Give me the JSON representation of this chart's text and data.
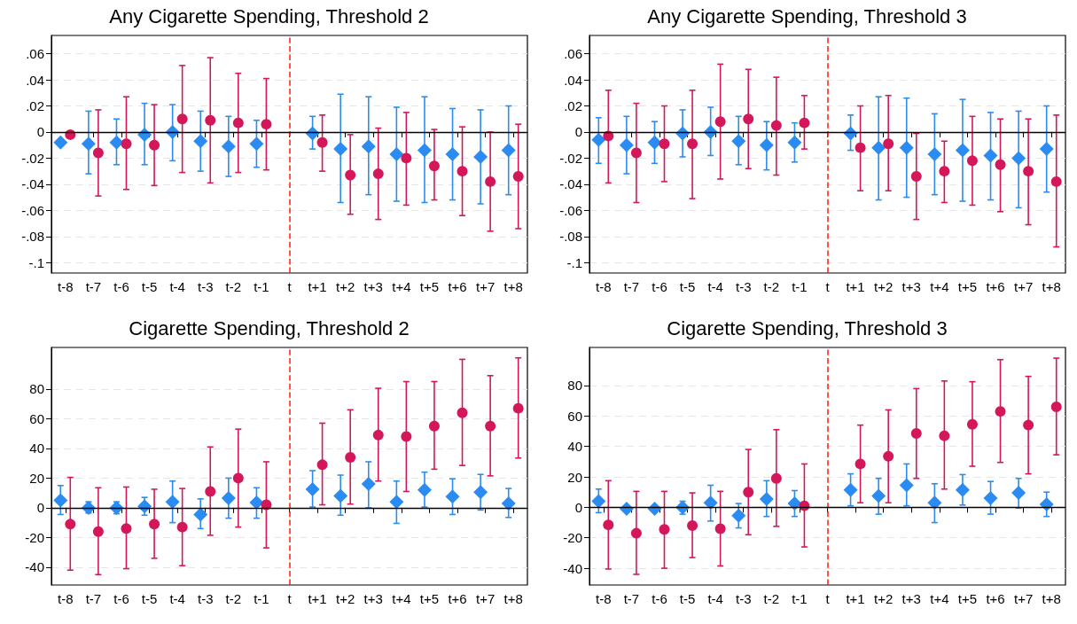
{
  "chart_data": [
    {
      "type": "scatter",
      "title": "Any Cigarette Spending, Threshold 2",
      "categories": [
        "t-8",
        "t-7",
        "t-6",
        "t-5",
        "t-4",
        "t-3",
        "t-2",
        "t-1",
        "t",
        "t+1",
        "t+2",
        "t+3",
        "t+4",
        "t+5",
        "t+6",
        "t+7",
        "t+8"
      ],
      "ylim": [
        -0.108,
        0.074
      ],
      "yticks": [
        {
          "value": -0.1,
          "label": "-.1"
        },
        {
          "value": -0.08,
          "label": "-.08"
        },
        {
          "value": -0.06,
          "label": "-.06"
        },
        {
          "value": -0.04,
          "label": "-.04"
        },
        {
          "value": -0.02,
          "label": "-.02"
        },
        0,
        {
          "value": 0.02,
          "label": ".02"
        },
        {
          "value": 0.04,
          "label": ".04"
        },
        {
          "value": 0.06,
          "label": ".06"
        }
      ],
      "grid": "y",
      "ref_lines": [
        {
          "axis": "x",
          "value": "t",
          "color": "#ff2a1a",
          "line_style": "dashed"
        },
        {
          "axis": "y",
          "value": 0,
          "color": "#000000",
          "line_style": "solid"
        }
      ],
      "series": [
        {
          "color": "#2a8cf2",
          "marker": "diamond",
          "values": [
            -0.008,
            -0.009,
            -0.008,
            -0.002,
            0,
            -0.007,
            -0.011,
            -0.009,
            null,
            -0.001,
            -0.013,
            -0.011,
            -0.017,
            -0.014,
            -0.017,
            -0.019,
            -0.014
          ],
          "errors": [
            null,
            [
              -0.032,
              0.016
            ],
            [
              -0.025,
              0.01
            ],
            [
              -0.025,
              0.022
            ],
            [
              -0.022,
              0.021
            ],
            [
              -0.03,
              0.016
            ],
            [
              -0.034,
              0.012
            ],
            [
              -0.027,
              0.009
            ],
            null,
            [
              -0.013,
              0.012
            ],
            [
              -0.054,
              0.029
            ],
            [
              -0.048,
              0.027
            ],
            [
              -0.053,
              0.019
            ],
            [
              -0.054,
              0.027
            ],
            [
              -0.052,
              0.018
            ],
            [
              -0.055,
              0.017
            ],
            [
              -0.048,
              0.02
            ]
          ]
        },
        {
          "color": "#d4175a",
          "marker": "circle",
          "values": [
            -0.002,
            -0.016,
            -0.009,
            -0.01,
            0.01,
            0.009,
            0.007,
            0.006,
            null,
            -0.008,
            -0.033,
            -0.032,
            -0.02,
            -0.026,
            -0.03,
            -0.038,
            -0.034
          ],
          "errors": [
            null,
            [
              -0.049,
              0.017
            ],
            [
              -0.044,
              0.027
            ],
            [
              -0.041,
              0.021
            ],
            [
              -0.031,
              0.051
            ],
            [
              -0.039,
              0.057
            ],
            [
              -0.031,
              0.045
            ],
            [
              -0.029,
              0.041
            ],
            null,
            [
              -0.03,
              0.013
            ],
            [
              -0.063,
              -0.002
            ],
            [
              -0.067,
              0.003
            ],
            [
              -0.056,
              0.015
            ],
            [
              -0.052,
              0.002
            ],
            [
              -0.064,
              0.004
            ],
            [
              -0.076,
              0
            ],
            [
              -0.074,
              0.006
            ]
          ]
        }
      ]
    },
    {
      "type": "scatter",
      "title": "Any Cigarette Spending, Threshold 3",
      "categories": [
        "t-8",
        "t-7",
        "t-6",
        "t-5",
        "t-4",
        "t-3",
        "t-2",
        "t-1",
        "t",
        "t+1",
        "t+2",
        "t+3",
        "t+4",
        "t+5",
        "t+6",
        "t+7",
        "t+8"
      ],
      "ylim": [
        -0.108,
        0.074
      ],
      "yticks": [
        {
          "value": -0.1,
          "label": "-.1"
        },
        {
          "value": -0.08,
          "label": "-.08"
        },
        {
          "value": -0.06,
          "label": "-.06"
        },
        {
          "value": -0.04,
          "label": "-.04"
        },
        {
          "value": -0.02,
          "label": "-.02"
        },
        0,
        {
          "value": 0.02,
          "label": ".02"
        },
        {
          "value": 0.04,
          "label": ".04"
        },
        {
          "value": 0.06,
          "label": ".06"
        }
      ],
      "grid": "y",
      "ref_lines": [
        {
          "axis": "x",
          "value": "t",
          "color": "#ff2a1a",
          "line_style": "dashed"
        },
        {
          "axis": "y",
          "value": 0,
          "color": "#000000",
          "line_style": "solid"
        }
      ],
      "series": [
        {
          "color": "#2a8cf2",
          "marker": "diamond",
          "values": [
            -0.006,
            -0.01,
            -0.008,
            -0.001,
            0,
            -0.007,
            -0.01,
            -0.008,
            null,
            -0.001,
            -0.012,
            -0.012,
            -0.017,
            -0.014,
            -0.018,
            -0.02,
            -0.013
          ],
          "errors": [
            [
              -0.024,
              0.011
            ],
            [
              -0.032,
              0.012
            ],
            [
              -0.024,
              0.008
            ],
            [
              -0.019,
              0.017
            ],
            [
              -0.018,
              0.019
            ],
            [
              -0.025,
              0.012
            ],
            [
              -0.029,
              0.008
            ],
            [
              -0.023,
              0.007
            ],
            null,
            [
              -0.014,
              0.013
            ],
            [
              -0.052,
              0.027
            ],
            [
              -0.05,
              0.026
            ],
            [
              -0.048,
              0.014
            ],
            [
              -0.053,
              0.025
            ],
            [
              -0.052,
              0.015
            ],
            [
              -0.058,
              0.016
            ],
            [
              -0.046,
              0.02
            ]
          ]
        },
        {
          "color": "#d4175a",
          "marker": "circle",
          "values": [
            -0.003,
            -0.016,
            -0.009,
            -0.009,
            0.008,
            0.01,
            0.005,
            0.007,
            null,
            -0.012,
            -0.009,
            -0.034,
            -0.03,
            -0.022,
            -0.025,
            -0.03,
            -0.038
          ],
          "errors": [
            [
              -0.039,
              0.032
            ],
            [
              -0.054,
              0.022
            ],
            [
              -0.038,
              0.02
            ],
            [
              -0.051,
              0.032
            ],
            [
              -0.036,
              0.052
            ],
            [
              -0.028,
              0.048
            ],
            [
              -0.033,
              0.042
            ],
            [
              -0.013,
              0.028
            ],
            null,
            [
              -0.045,
              0.02
            ],
            [
              -0.045,
              0.028
            ],
            [
              -0.067,
              -0.001
            ],
            [
              -0.054,
              -0.007
            ],
            [
              -0.056,
              0.012
            ],
            [
              -0.061,
              0.01
            ],
            [
              -0.071,
              0.01
            ],
            [
              -0.088,
              0.013
            ]
          ]
        }
      ]
    },
    {
      "type": "scatter",
      "title": "Cigarette Spending, Threshold 2",
      "categories": [
        "t-8",
        "t-7",
        "t-6",
        "t-5",
        "t-4",
        "t-3",
        "t-2",
        "t-1",
        "t",
        "t+1",
        "t+2",
        "t+3",
        "t+4",
        "t+5",
        "t+6",
        "t+7",
        "t+8"
      ],
      "ylim": [
        -52,
        108
      ],
      "yticks": [
        -40,
        -20,
        0,
        20,
        40,
        60,
        80
      ],
      "grid": "y",
      "ref_lines": [
        {
          "axis": "x",
          "value": "t",
          "color": "#ff2a1a",
          "line_style": "dashed"
        },
        {
          "axis": "y",
          "value": 0,
          "color": "#000000",
          "line_style": "solid"
        }
      ],
      "series": [
        {
          "color": "#2a8cf2",
          "marker": "diamond",
          "values": [
            5,
            0,
            0,
            1,
            4,
            -4.5,
            6.5,
            3.5,
            null,
            12.5,
            8,
            16,
            4,
            12,
            7.5,
            10.5,
            3
          ],
          "errors": [
            [
              -4.5,
              15
            ],
            [
              -3.5,
              4
            ],
            [
              -4,
              4
            ],
            [
              -5,
              7
            ],
            [
              -10,
              18
            ],
            [
              -14,
              6
            ],
            [
              -7,
              20
            ],
            [
              -7,
              13.5
            ],
            null,
            [
              0.5,
              25
            ],
            [
              -5,
              22
            ],
            [
              0,
              31
            ],
            [
              -10.5,
              18
            ],
            [
              0.5,
              24
            ],
            [
              -4.5,
              19.5
            ],
            [
              -1.5,
              22.5
            ],
            [
              -6.5,
              13
            ]
          ]
        },
        {
          "color": "#d4175a",
          "marker": "circle",
          "values": [
            -11,
            -16,
            -14,
            -11,
            -13,
            11,
            20,
            2,
            null,
            29,
            34,
            49,
            48,
            55,
            64,
            55,
            67
          ],
          "errors": [
            [
              -42,
              20.5
            ],
            [
              -45,
              13.5
            ],
            [
              -41,
              14
            ],
            [
              -34,
              12.5
            ],
            [
              -39,
              13
            ],
            [
              -18.5,
              41
            ],
            [
              -13,
              53
            ],
            [
              -27,
              31
            ],
            null,
            [
              2,
              57
            ],
            [
              2.5,
              66
            ],
            [
              18,
              80.5
            ],
            [
              11,
              85
            ],
            [
              26,
              85
            ],
            [
              28.5,
              100
            ],
            [
              21.5,
              89
            ],
            [
              33.5,
              101
            ]
          ]
        }
      ]
    },
    {
      "type": "scatter",
      "title": "Cigarette Spending, Threshold 3",
      "categories": [
        "t-8",
        "t-7",
        "t-6",
        "t-5",
        "t-4",
        "t-3",
        "t-2",
        "t-1",
        "t",
        "t+1",
        "t+2",
        "t+3",
        "t+4",
        "t+5",
        "t+6",
        "t+7",
        "t+8"
      ],
      "ylim": [
        -51,
        105
      ],
      "yticks": [
        -40,
        -20,
        0,
        20,
        40,
        60,
        80
      ],
      "grid": "y",
      "ref_lines": [
        {
          "axis": "x",
          "value": "t",
          "color": "#ff2a1a",
          "line_style": "dashed"
        },
        {
          "axis": "y",
          "value": 0,
          "color": "#000000",
          "line_style": "solid"
        }
      ],
      "series": [
        {
          "color": "#2a8cf2",
          "marker": "diamond",
          "values": [
            4,
            -1,
            -1,
            0,
            3,
            -5.5,
            5.5,
            2.5,
            null,
            11.5,
            7.5,
            14.5,
            3,
            11.5,
            6,
            9.5,
            2
          ],
          "errors": [
            [
              -3.5,
              12
            ],
            null,
            null,
            [
              -4.5,
              4
            ],
            [
              -9,
              14.5
            ],
            [
              -13.5,
              2.5
            ],
            [
              -6,
              17.5
            ],
            [
              -6,
              11
            ],
            null,
            [
              1,
              22
            ],
            [
              -4.5,
              19
            ],
            [
              1,
              28.5
            ],
            [
              -10,
              15.5
            ],
            [
              1.5,
              21.5
            ],
            [
              -4.5,
              17
            ],
            [
              -0.5,
              19
            ],
            [
              -6,
              10
            ]
          ]
        },
        {
          "color": "#d4175a",
          "marker": "circle",
          "values": [
            -11.5,
            -17,
            -14.5,
            -12,
            -14,
            10,
            19,
            1,
            null,
            28.5,
            33.5,
            48.5,
            47,
            54.5,
            63,
            54,
            66
          ],
          "errors": [
            [
              -40.5,
              17.5
            ],
            [
              -44,
              10.5
            ],
            [
              -40,
              10.5
            ],
            [
              -33,
              9.5
            ],
            [
              -38.5,
              10.5
            ],
            [
              -18,
              38
            ],
            [
              -12.5,
              51
            ],
            [
              -26,
              28.5
            ],
            null,
            [
              3,
              54
            ],
            [
              3,
              64
            ],
            [
              19,
              78
            ],
            [
              12,
              83
            ],
            [
              27,
              82.5
            ],
            [
              29.5,
              97
            ],
            [
              22,
              86
            ],
            [
              34.5,
              98
            ]
          ]
        }
      ]
    }
  ]
}
